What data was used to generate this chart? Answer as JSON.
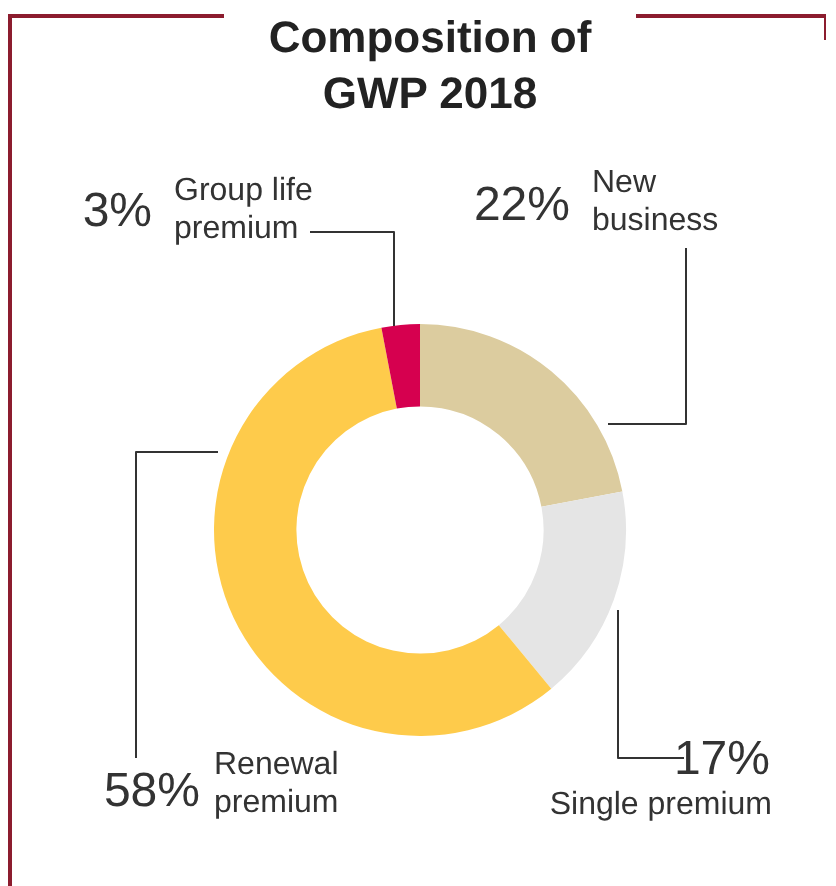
{
  "chart_data": {
    "type": "donut",
    "title": "Composition of GWP 2018",
    "categories": [
      "New business",
      "Single premium",
      "Renewal premium",
      "Group life premium"
    ],
    "values": [
      22,
      17,
      58,
      3
    ],
    "colors": [
      "#dccc9f",
      "#e5e5e5",
      "#fecb4b",
      "#d6004f"
    ],
    "value_labels": [
      "22%",
      "17%",
      "58%",
      "3%"
    ]
  }
}
